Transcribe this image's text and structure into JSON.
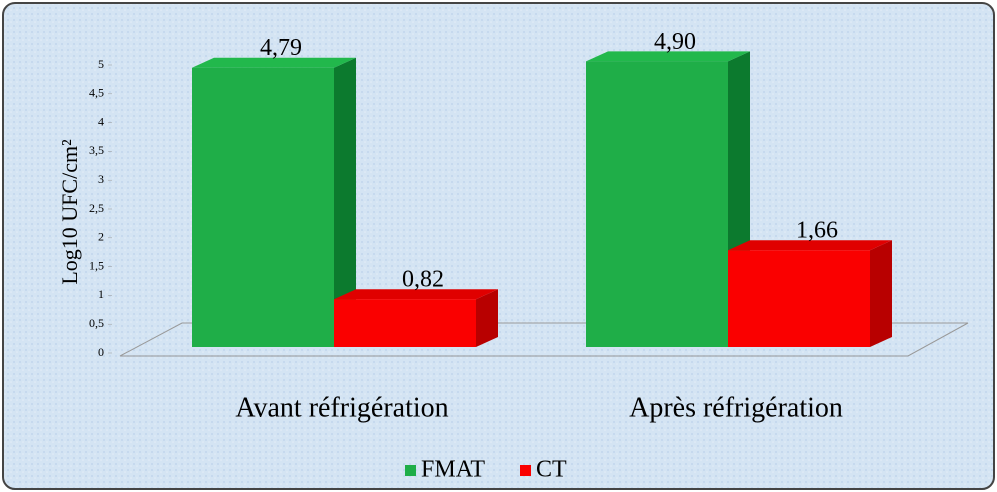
{
  "chart_data": {
    "type": "bar3d",
    "y_label": "Log10 UFC/cm²",
    "categories": [
      "Avant réfrigération",
      "Après réfrigération"
    ],
    "series": [
      {
        "name": "FMAT",
        "color": "#1fae48",
        "side": "#0c7a2e",
        "top": "#22b84c",
        "values": [
          4.79,
          4.9
        ],
        "value_labels": [
          "4,79",
          "4,90"
        ]
      },
      {
        "name": "CT",
        "color": "#fa0000",
        "side": "#b80000",
        "top": "#e00000",
        "values": [
          0.82,
          1.66
        ],
        "value_labels": [
          "0,82",
          "1,66"
        ]
      }
    ],
    "ylim": [
      0,
      5
    ],
    "yticks": [
      0,
      {
        "value": 0.5,
        "label": "0,5"
      },
      1,
      {
        "value": 1.5,
        "label": "1,5"
      },
      2,
      {
        "value": 2.5,
        "label": "2,5"
      },
      3,
      {
        "value": 3.5,
        "label": "3,5"
      },
      4,
      {
        "value": 4.5,
        "label": "4,5"
      },
      5
    ],
    "legend": "bottom"
  }
}
